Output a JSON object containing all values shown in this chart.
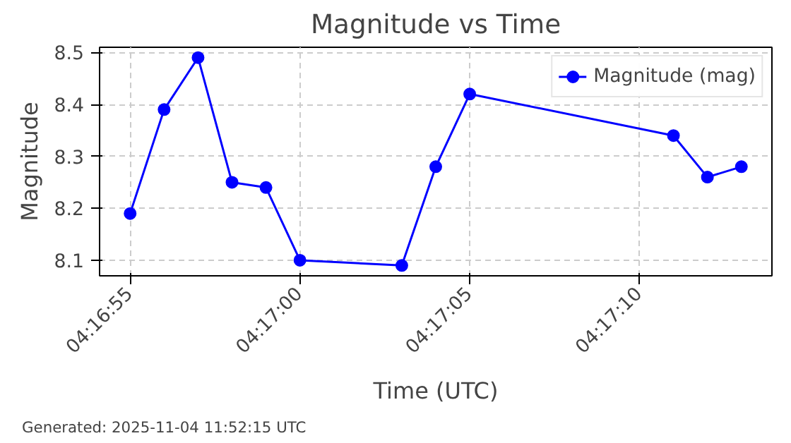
{
  "chart_data": {
    "type": "line",
    "title": "Magnitude vs Time",
    "xlabel": "Time (UTC)",
    "ylabel": "Magnitude",
    "x": [
      "2025-11-04T04:16:55",
      "2025-11-04T04:16:56",
      "2025-11-04T04:16:57",
      "2025-11-04T04:16:58",
      "2025-11-04T04:16:59",
      "2025-11-04T04:17:00",
      "2025-11-04T04:17:03",
      "2025-11-04T04:17:04",
      "2025-11-04T04:17:05",
      "2025-11-04T04:17:11",
      "2025-11-04T04:17:12",
      "2025-11-04T04:17:13"
    ],
    "series": [
      {
        "name": "Magnitude (mag)",
        "color": "#0000ff",
        "values": [
          8.19,
          8.39,
          8.49,
          8.25,
          8.24,
          8.1,
          8.09,
          8.28,
          8.42,
          8.34,
          8.26,
          8.28
        ]
      }
    ],
    "xlim": [
      "2025-11-04T04:16:54.1",
      "2025-11-04T04:17:13.9"
    ],
    "xticks": [
      {
        "value": "2025-11-04T04:16:55",
        "label": "04:16:55"
      },
      {
        "value": "2025-11-04T04:17:00",
        "label": "04:17:00"
      },
      {
        "value": "2025-11-04T04:17:05",
        "label": "04:17:05"
      },
      {
        "value": "2025-11-04T04:17:10",
        "label": "04:17:10"
      }
    ],
    "ylim": [
      8.07,
      8.51
    ],
    "yticks": [
      8.1,
      8.2,
      8.3,
      8.4,
      8.5
    ],
    "grid": true,
    "legend": "top right",
    "marker": "circle",
    "line_style": "solid",
    "annotations": [
      "Generated: 2025-11-04 11:52:15 UTC"
    ]
  }
}
